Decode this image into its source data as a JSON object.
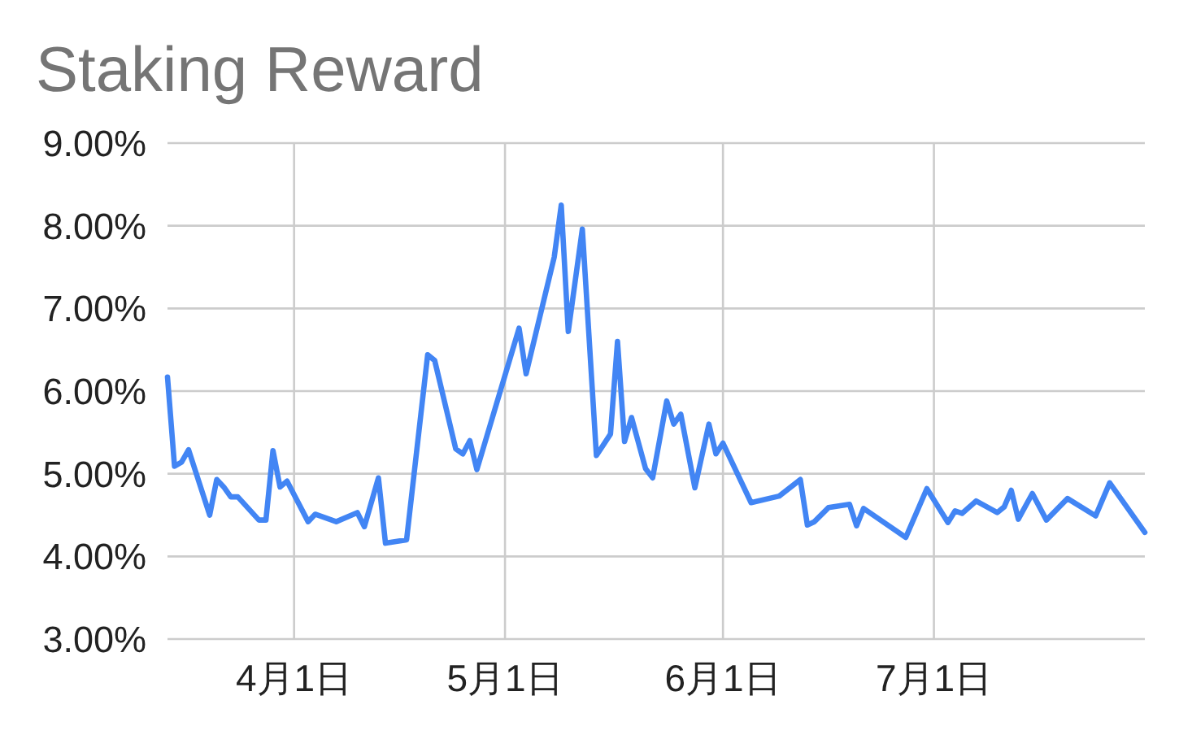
{
  "chart_data": {
    "type": "line",
    "title": "Staking Reward",
    "color": "#4285f4",
    "x": [
      "--03-14",
      "--03-15",
      "--03-16",
      "--03-17",
      "--03-20",
      "--03-21",
      "--03-22",
      "--03-23",
      "--03-24",
      "--03-27",
      "--03-28",
      "--03-29",
      "--03-30",
      "--03-31",
      "--04-03",
      "--04-04",
      "--04-07",
      "--04-10",
      "--04-11",
      "--04-13",
      "--04-14",
      "--04-17",
      "--04-20",
      "--04-21",
      "--04-24",
      "--04-25",
      "--04-26",
      "--04-27",
      "--05-03",
      "--05-04",
      "--05-08",
      "--05-09",
      "--05-10",
      "--05-12",
      "--05-14",
      "--05-16",
      "--05-17",
      "--05-18",
      "--05-19",
      "--05-21",
      "--05-22",
      "--05-24",
      "--05-25",
      "--05-26",
      "--05-28",
      "--05-30",
      "--05-31",
      "--06-01",
      "--06-05",
      "--06-09",
      "--06-12",
      "--06-13",
      "--06-14",
      "--06-16",
      "--06-19",
      "--06-20",
      "--06-21",
      "--06-27",
      "--06-30",
      "--07-03",
      "--07-04",
      "--07-05",
      "--07-07",
      "--07-10",
      "--07-11",
      "--07-12",
      "--07-13",
      "--07-15",
      "--07-17",
      "--07-20",
      "--07-24",
      "--07-26",
      "--07-31"
    ],
    "values": [
      6.17,
      5.09,
      5.14,
      5.29,
      4.5,
      4.93,
      4.84,
      4.72,
      4.72,
      4.44,
      4.44,
      5.28,
      4.84,
      4.91,
      4.42,
      4.51,
      4.42,
      4.53,
      4.36,
      4.95,
      4.16,
      4.2,
      6.44,
      6.37,
      5.3,
      5.24,
      5.4,
      5.05,
      6.76,
      6.21,
      7.62,
      8.25,
      6.72,
      7.96,
      5.22,
      5.48,
      6.6,
      5.39,
      5.68,
      5.06,
      4.95,
      5.88,
      5.6,
      5.72,
      4.83,
      5.6,
      5.24,
      5.37,
      4.65,
      4.73,
      4.93,
      4.38,
      4.42,
      4.59,
      4.63,
      4.37,
      4.58,
      4.23,
      4.82,
      4.41,
      4.55,
      4.52,
      4.67,
      4.53,
      4.6,
      4.8,
      4.45,
      4.76,
      4.44,
      4.7,
      4.49,
      4.89,
      4.29
    ],
    "xlim": [
      "--03-14",
      "--07-31"
    ],
    "xticks": [
      {
        "value": "--04-01",
        "label": "4月1日"
      },
      {
        "value": "--05-01",
        "label": "5月1日"
      },
      {
        "value": "--06-01",
        "label": "6月1日"
      },
      {
        "value": "--07-01",
        "label": "7月1日"
      }
    ],
    "ylim": [
      3,
      9
    ],
    "yticks": [
      {
        "value": 3,
        "label": "3.00%"
      },
      {
        "value": 4,
        "label": "4.00%"
      },
      {
        "value": 5,
        "label": "5.00%"
      },
      {
        "value": 6,
        "label": "6.00%"
      },
      {
        "value": 7,
        "label": "7.00%"
      },
      {
        "value": 8,
        "label": "8.00%"
      },
      {
        "value": 9,
        "label": "9.00%"
      }
    ],
    "grid": true
  }
}
